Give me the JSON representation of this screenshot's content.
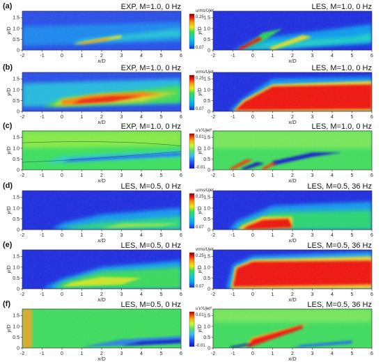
{
  "x_axis": {
    "label": "x/D",
    "ticks": [
      "-2",
      "-1",
      "0",
      "1",
      "2",
      "3",
      "4",
      "5",
      "6"
    ]
  },
  "y_axis": {
    "label": "y/D",
    "ticks": [
      "0",
      "0.5",
      "1.0",
      "1.5"
    ]
  },
  "rows": [
    {
      "label": "(a)",
      "left": {
        "title": "EXP, M=1.0, 0 Hz",
        "field": "exp_u"
      },
      "right": {
        "title": "LES, M=1.0, 0 Hz",
        "field": "les_u"
      },
      "colorbar": {
        "label": "urms/Ujet",
        "max": "0.25",
        "min": "0.07",
        "type": "rms"
      }
    },
    {
      "label": "(b)",
      "left": {
        "title": "EXP, M=1.0, 0 Hz",
        "field": "exp_v"
      },
      "right": {
        "title": "LES, M=1.0, 0 Hz",
        "field": "les_v"
      },
      "colorbar": {
        "label": "vrms/Ujet",
        "max": "0.25",
        "min": "0.07",
        "type": "rms"
      }
    },
    {
      "label": "(c)",
      "left": {
        "title": "EXP, M=1.0, 0 Hz",
        "field": "exp_uv"
      },
      "right": {
        "title": "LES, M=1.0, 0 Hz",
        "field": "les_uv"
      },
      "colorbar": {
        "label": "u′v′/Ujet²",
        "max": "0.01",
        "min": "-0.01",
        "type": "div"
      }
    },
    {
      "label": "(d)",
      "left": {
        "title": "LES, M=0.5, 0 Hz",
        "field": "les05_u"
      },
      "right": {
        "title": "LES, M=0.5, 36 Hz",
        "field": "les05_u36"
      },
      "colorbar": {
        "label": "urms/Ujet",
        "max": "0.25",
        "min": "0.07",
        "type": "rms"
      }
    },
    {
      "label": "(e)",
      "left": {
        "title": "LES, M=0.5, 0 Hz",
        "field": "les05_v"
      },
      "right": {
        "title": "LES, M=0.5, 36 Hz",
        "field": "les05_v36"
      },
      "colorbar": {
        "label": "vrms/Ujet",
        "max": "0.25",
        "min": "0.07",
        "type": "rms"
      }
    },
    {
      "label": "(f)",
      "left": {
        "title": "LES, M=0.5, 0 Hz",
        "field": "les05_uv"
      },
      "right": {
        "title": "LES, M=0.5, 36 Hz",
        "field": "les05_uv36"
      },
      "colorbar": {
        "label": "u′v′/Ujet²",
        "max": "0.01",
        "min": "-0.01",
        "type": "div"
      }
    }
  ],
  "colors": {
    "rms_scale": [
      "#1f2fe0",
      "#00a0ff",
      "#10d0d0",
      "#30e050",
      "#f0f000",
      "#ff9000",
      "#f01010",
      "#9a0000"
    ],
    "div_scale": [
      "#1010c0",
      "#2060ff",
      "#30c0ff",
      "#50e070",
      "#c0ff30",
      "#ffb000",
      "#ff3000",
      "#b00000"
    ]
  }
}
